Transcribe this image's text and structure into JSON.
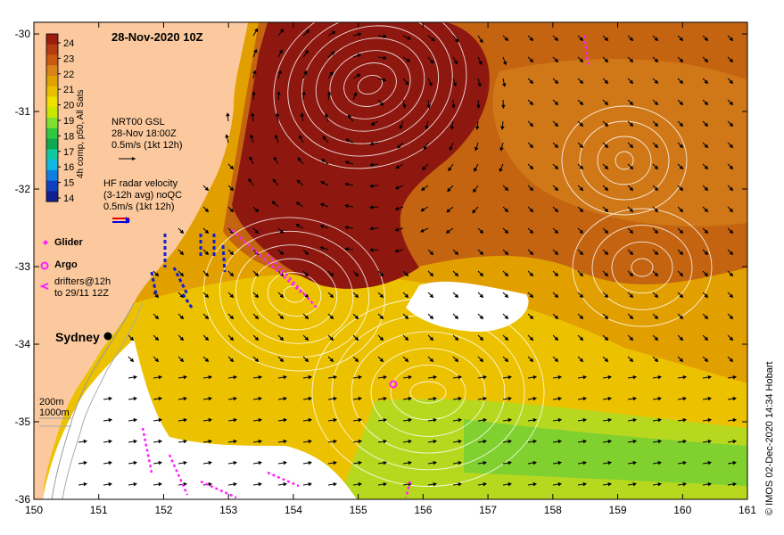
{
  "map": {
    "title": "28-Nov-2020 10Z",
    "lon_ticks": [
      "150",
      "151",
      "152",
      "153",
      "154",
      "155",
      "156",
      "157",
      "158",
      "159",
      "160",
      "161"
    ],
    "lat_ticks": [
      "-30",
      "-31",
      "-32",
      "-33",
      "-34",
      "-35",
      "-36"
    ],
    "lon_range": [
      150,
      161
    ],
    "lat_range": [
      -36,
      -29.85
    ]
  },
  "colorbar": {
    "label": "4h comp, p50, All Sats",
    "ticks": [
      "24",
      "23",
      "22",
      "21",
      "20",
      "19",
      "18",
      "17",
      "16",
      "15",
      "14"
    ],
    "colors": [
      "#9a1e10",
      "#b23d10",
      "#c85a10",
      "#d8821a",
      "#e0a200",
      "#e8c000",
      "#eee000",
      "#c8e800",
      "#80e030",
      "#30c840",
      "#10a850",
      "#10c8a0",
      "#10b8e0",
      "#1080e0",
      "#1040c0",
      "#102090"
    ]
  },
  "legend": {
    "gsl": [
      "NRT00 GSL",
      "28-Nov 18:00Z",
      "0.5m/s (1kt 12h)"
    ],
    "hf": [
      "HF radar velocity",
      "(3-12h avg) noQC",
      "0.5m/s (1kt 12h)"
    ],
    "glider": "Glider",
    "argo": "Argo",
    "drifters": [
      "drifters@12h",
      "to 29/11 12Z"
    ],
    "depth": [
      "200m",
      "1000m"
    ]
  },
  "place": {
    "name": "Sydney",
    "lon": 151.2,
    "lat": -33.87
  },
  "credit": "© IMOS 02-Dec-2020 14:34 Hobart",
  "colors": {
    "land": "#fbc99d",
    "warm_core": "#8e1810",
    "sst_mid": "#e0a200",
    "sst_cool": "#e8d000",
    "glider": "#1020d0",
    "drifter": "#ff20ff",
    "contour": "#ffffff"
  }
}
